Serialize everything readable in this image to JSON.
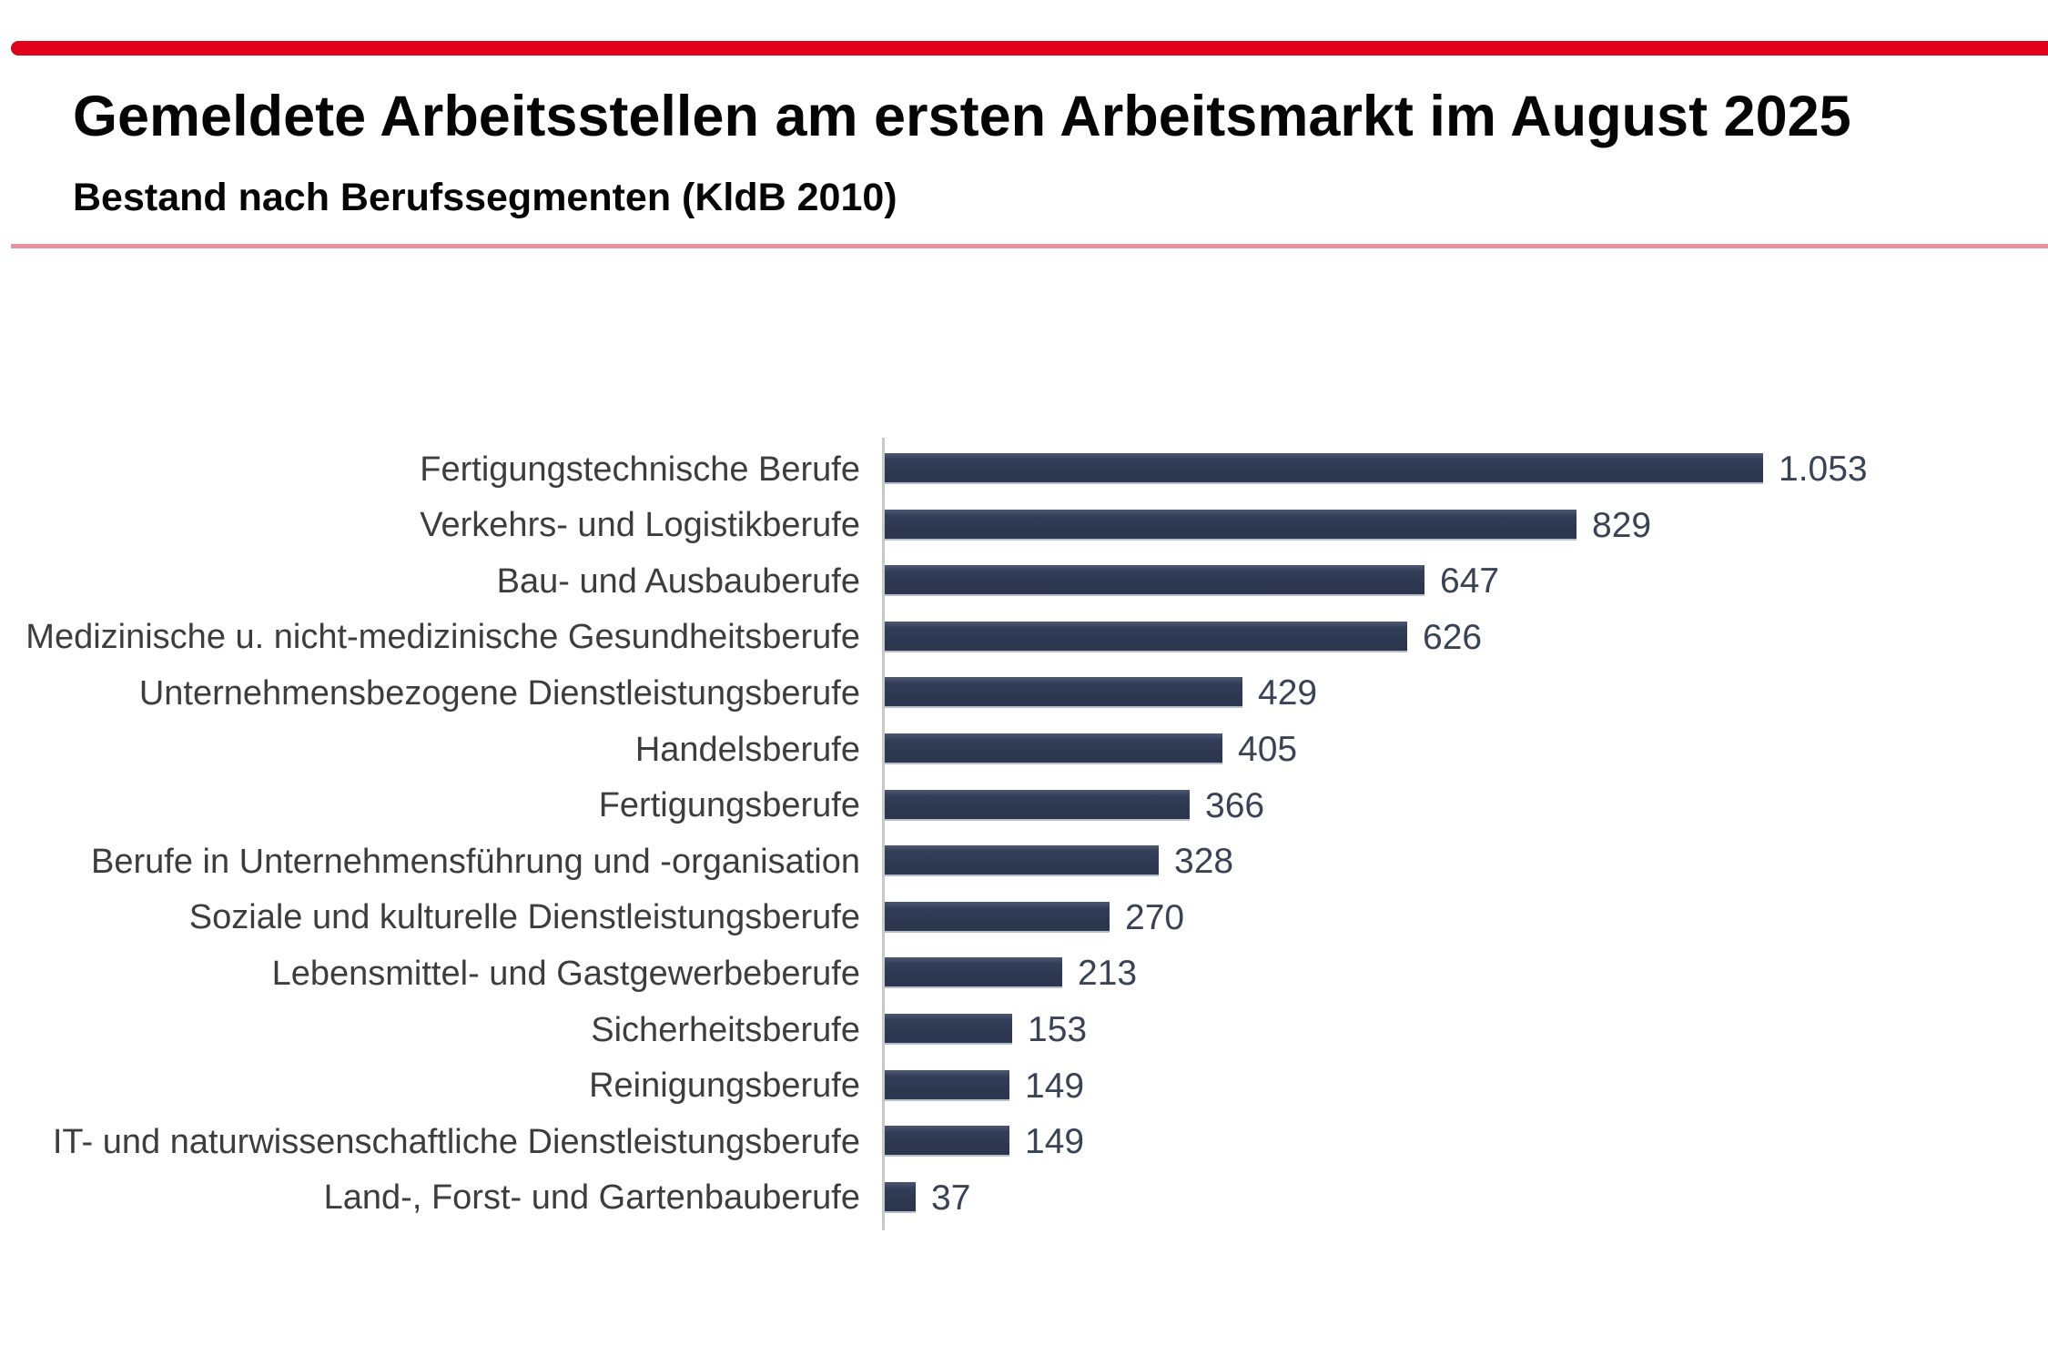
{
  "header": {
    "title": "Gemeldete Arbeitsstellen am ersten Arbeitsmarkt im August 2025",
    "subtitle": "Bestand nach Berufssegmenten (KldB 2010)"
  },
  "colors": {
    "accent_red": "#e2001a",
    "divider_pink": "#e9929e",
    "bar_fill": "#2e3950",
    "axis_gray": "#c9c9c9",
    "category_text": "#3d3d3d",
    "value_text": "#3a4356"
  },
  "chart_data": {
    "type": "bar",
    "orientation": "horizontal",
    "title": "Gemeldete Arbeitsstellen am ersten Arbeitsmarkt im August 2025",
    "subtitle": "Bestand nach Berufssegmenten (KldB 2010)",
    "sort_order": "descending",
    "legend": "none",
    "grid": "off",
    "xlim": [
      0,
      1100
    ],
    "categories": [
      "Fertigungstechnische Berufe",
      "Verkehrs- und Logistikberufe",
      "Bau- und Ausbauberufe",
      "Medizinische u. nicht-medizinische Gesundheitsberufe",
      "Unternehmensbezogene Dienstleistungsberufe",
      "Handelsberufe",
      "Fertigungsberufe",
      "Berufe in Unternehmensführung und -organisation",
      "Soziale und kulturelle Dienstleistungsberufe",
      "Lebensmittel- und Gastgewerbeberufe",
      "Sicherheitsberufe",
      "Reinigungsberufe",
      "IT- und naturwissenschaftliche Dienstleistungsberufe",
      "Land-, Forst- und Gartenbauberufe"
    ],
    "values": [
      1053,
      829,
      647,
      626,
      429,
      405,
      366,
      328,
      270,
      213,
      153,
      149,
      149,
      37
    ],
    "value_labels": [
      "1.053",
      "829",
      "647",
      "626",
      "429",
      "405",
      "366",
      "328",
      "270",
      "213",
      "153",
      "149",
      "149",
      "37"
    ]
  }
}
